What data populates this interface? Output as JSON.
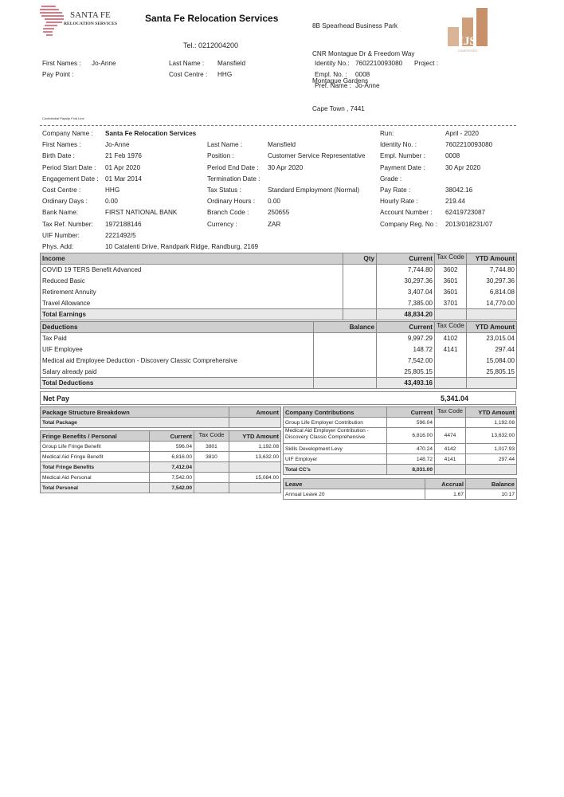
{
  "header": {
    "logo_text": "SANTA FE",
    "logo_subtext": "RELOCATION SERVICES",
    "company_title": "Santa Fe Relocation Services",
    "address": [
      "8B Spearhead Business Park",
      "CNR Montague Dr & Freedom Way",
      "Montague Gardens",
      "Cape Town , 7441"
    ],
    "tel": "Tel.: 0212004200",
    "ijs_logo_text": "IJS",
    "ijs_logo_sub": "CHARTERED ACCOUNTANTS"
  },
  "summary": {
    "first_names_label": "First Names :",
    "first_names": "Jo-Anne",
    "pay_point_label": "Pay Point :",
    "last_name_label": "Last Name :",
    "last_name": "Mansfield",
    "cost_centre_label": "Cost Centre :",
    "cost_centre": "HHG",
    "identity_label": "Identity No.:",
    "identity": "7602210093080",
    "project_label": "Project :",
    "empl_no_label": "Empl. No. :",
    "empl_no": "0008",
    "pref_name_label": "Pref. Name :",
    "pref_name": "Jo-Anne"
  },
  "fold_line": "Confidential Payslip Fold Line",
  "details": [
    [
      "Company Name :",
      "Santa Fe Relocation Services",
      "",
      "",
      "Run:",
      "April - 2020"
    ],
    [
      "First Names :",
      "Jo-Anne",
      "Last Name :",
      "Mansfield",
      "Identity No. :",
      "7602210093080"
    ],
    [
      "Birth Date :",
      "21 Feb 1976",
      "Position :",
      "Customer Service Representative",
      "Empl. Number :",
      "0008"
    ],
    [
      "Period Start Date :",
      "01 Apr 2020",
      "Period End Date :",
      "30 Apr 2020",
      "Payment Date :",
      "30 Apr 2020"
    ],
    [
      "Engagement Date :",
      "01 Mar 2014",
      "Termination Date :",
      "",
      "Grade :",
      ""
    ],
    [
      "Cost Centre :",
      "HHG",
      "Tax Status :",
      "Standard Employment (Normal)",
      "Pay Rate :",
      "38042.16"
    ],
    [
      "Ordinary Days :",
      "0.00",
      "Ordinary Hours :",
      "0.00",
      "Hourly Rate :",
      "219.44"
    ],
    [
      "Bank Name:",
      "FIRST NATIONAL BANK",
      "Branch Code :",
      "250655",
      "Account Number :",
      "62419723087"
    ],
    [
      "Tax Ref. Number:",
      "1972188146",
      "Currency :",
      "ZAR",
      "Company Reg. No :",
      "2013/018231/07"
    ],
    [
      "UIF Number:",
      "2221492/5",
      "",
      "",
      "",
      ""
    ],
    [
      "Phys. Add:",
      "10 Catalenti Drive, Randpark Ridge, Randburg, 2169",
      "",
      "",
      "",
      ""
    ]
  ],
  "income": {
    "headers": [
      "Income",
      "Qty",
      "Current",
      "Tax Code",
      "YTD Amount"
    ],
    "rows": [
      [
        "COVID 19 TERS Benefit Advanced",
        "",
        "7,744.80",
        "3602",
        "7,744.80"
      ],
      [
        "Reduced Basic",
        "",
        "30,297.36",
        "3601",
        "30,297.36"
      ],
      [
        "Retirement Annuity",
        "",
        "3,407.04",
        "3601",
        "6,814.08"
      ],
      [
        "Travel Allowance",
        "",
        "7,385.00",
        "3701",
        "14,770.00"
      ]
    ],
    "total": [
      "Total Earnings",
      "",
      "48,834.20",
      "",
      ""
    ]
  },
  "deductions": {
    "headers": [
      "Deductions",
      "Balance",
      "Current",
      "Tax Code",
      "YTD Amount"
    ],
    "rows": [
      [
        "Tax Paid",
        "",
        "9,997.29",
        "4102",
        "23,015.04"
      ],
      [
        "UIF Employee",
        "",
        "148.72",
        "4141",
        "297.44"
      ],
      [
        "Medical aid Employee Deduction - Discovery Classic Comprehensive",
        "",
        "7,542.00",
        "",
        "15,084.00"
      ],
      [
        "Salary already paid",
        "",
        "25,805.15",
        "",
        "25,805.15"
      ]
    ],
    "total": [
      "Total Deductions",
      "",
      "43,493.16",
      "",
      ""
    ]
  },
  "net_pay": {
    "label": "Net Pay",
    "value": "5,341.04"
  },
  "package": {
    "headers": [
      "Package Structure Breakdown",
      "Amount"
    ],
    "rows": [
      [
        "Total Package",
        ""
      ]
    ]
  },
  "fringe": {
    "headers": [
      "Fringe Benefits / Personal",
      "Current",
      "Tax Code",
      "YTD Amount"
    ],
    "rows": [
      [
        "Group Life Fringe Benefit",
        "596.04",
        "3801",
        "1,192.08"
      ],
      [
        "Medical Aid Fringe Benefit",
        "6,816.00",
        "3810",
        "13,632.00"
      ],
      [
        "Total Fringe Benefits",
        "7,412.04",
        "",
        ""
      ],
      [
        "Medical Aid Personal",
        "7,542.00",
        "",
        "15,084.00"
      ],
      [
        "Total Personal",
        "7,542.00",
        "",
        ""
      ]
    ]
  },
  "company_contributions": {
    "headers": [
      "Company Contributions",
      "Current",
      "Tax Code",
      "YTD Amount"
    ],
    "rows": [
      [
        "Group Life Employer Contribution",
        "596.04",
        "",
        "1,192.08"
      ],
      [
        "Medical Aid Employer Contribution - Discovery Classic Comprehensive",
        "6,816.00",
        "4474",
        "13,632.00"
      ],
      [
        "Skills Development Levy",
        "470.24",
        "4142",
        "1,017.93"
      ],
      [
        "UIF Employer",
        "148.72",
        "4141",
        "297.44"
      ]
    ],
    "total": [
      "Total CC's",
      "8,031.00",
      "",
      ""
    ]
  },
  "leave": {
    "headers": [
      "Leave",
      "Accrual",
      "Balance"
    ],
    "rows": [
      [
        "Annual Leave 20",
        "1.67",
        "10.17"
      ]
    ]
  },
  "colors": {
    "header_grey": "#cfcfcf",
    "logo_red": "#c8283c",
    "ijs_brown": "#c8906a"
  }
}
